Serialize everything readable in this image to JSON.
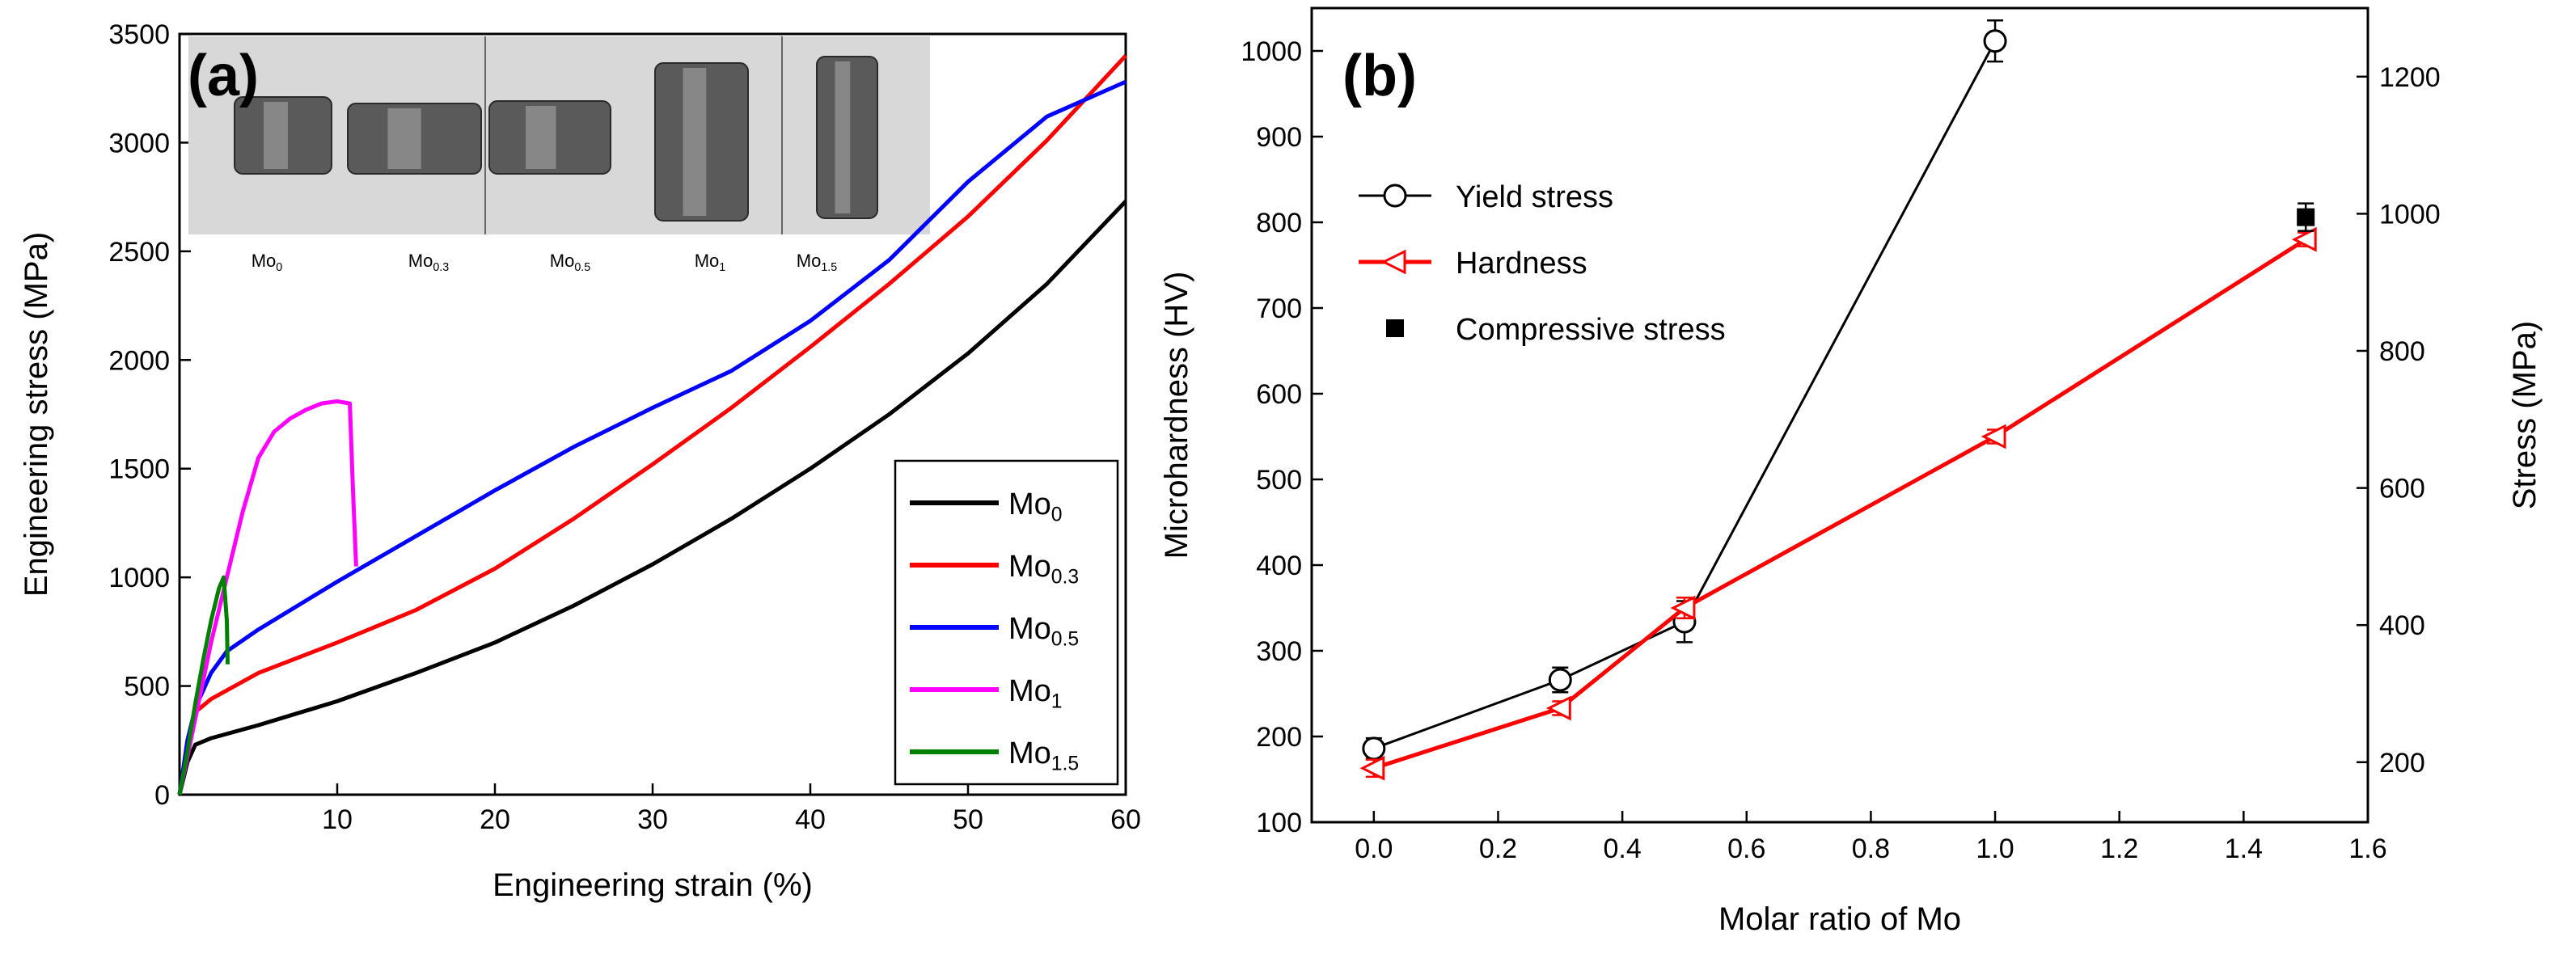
{
  "chart_data": [
    {
      "panel": "(a)",
      "type": "line",
      "title": "",
      "xlabel": "Engineering strain (%)",
      "ylabel": "Engineering stress (MPa)",
      "xlim": [
        0,
        60
      ],
      "ylim": [
        0,
        3500
      ],
      "xticks": [
        10,
        20,
        30,
        40,
        50,
        60
      ],
      "yticks": [
        0,
        500,
        1000,
        1500,
        2000,
        2500,
        3000,
        3500
      ],
      "legend_position": "bottom-right",
      "series": [
        {
          "name": "Mo0",
          "label_base": "Mo",
          "label_sub": "0",
          "color": "#000000",
          "x": [
            0,
            0.5,
            1,
            2,
            5,
            10,
            15,
            20,
            25,
            30,
            35,
            40,
            45,
            50,
            55,
            60
          ],
          "y": [
            0,
            150,
            230,
            260,
            320,
            430,
            560,
            700,
            870,
            1060,
            1270,
            1500,
            1750,
            2030,
            2350,
            2730
          ]
        },
        {
          "name": "Mo0.3",
          "label_base": "Mo",
          "label_sub": "0.3",
          "color": "#ff0000",
          "x": [
            0,
            0.5,
            1,
            2,
            5,
            10,
            15,
            20,
            25,
            30,
            35,
            40,
            45,
            50,
            55,
            60
          ],
          "y": [
            0,
            250,
            380,
            440,
            560,
            700,
            850,
            1040,
            1270,
            1520,
            1780,
            2060,
            2350,
            2660,
            3010,
            3400
          ]
        },
        {
          "name": "Mo0.5",
          "label_base": "Mo",
          "label_sub": "0.5",
          "color": "#0000ff",
          "x": [
            0,
            0.5,
            1,
            2,
            3,
            5,
            10,
            15,
            20,
            25,
            30,
            35,
            40,
            45,
            50,
            55,
            60
          ],
          "y": [
            0,
            250,
            400,
            560,
            660,
            760,
            980,
            1190,
            1400,
            1600,
            1780,
            1950,
            2180,
            2460,
            2820,
            3120,
            3280
          ]
        },
        {
          "name": "Mo1",
          "label_base": "Mo",
          "label_sub": "1",
          "color": "#ff00ff",
          "x": [
            0,
            1,
            2,
            3,
            4,
            5,
            6,
            7,
            8,
            9,
            10,
            10.8,
            11,
            11.2
          ],
          "y": [
            0,
            350,
            700,
            1000,
            1300,
            1550,
            1670,
            1730,
            1770,
            1800,
            1810,
            1800,
            1400,
            1050
          ]
        },
        {
          "name": "Mo1.5",
          "label_base": "Mo",
          "label_sub": "1.5",
          "color": "#008000",
          "x": [
            0,
            0.5,
            1,
            1.5,
            2,
            2.5,
            2.8,
            3.0,
            3.05
          ],
          "y": [
            0,
            200,
            420,
            620,
            800,
            950,
            1000,
            800,
            600
          ]
        }
      ],
      "inset_photo_labels": [
        {
          "base": "Mo",
          "sub": "0"
        },
        {
          "base": "Mo",
          "sub": "0.3"
        },
        {
          "base": "Mo",
          "sub": "0.5"
        },
        {
          "base": "Mo",
          "sub": "1"
        },
        {
          "base": "Mo",
          "sub": "1.5"
        }
      ]
    },
    {
      "panel": "(b)",
      "type": "line",
      "title": "",
      "xlabel": "Molar ratio of Mo",
      "ylabel_left": "Microhardness (HV)",
      "ylabel_right": "Stress (MPa)",
      "xlim": [
        -0.1,
        1.6
      ],
      "ylim_left": [
        100,
        1050
      ],
      "ylim_right": [
        112.5,
        1300
      ],
      "xticks": [
        "0.0",
        "0.2",
        "0.4",
        "0.6",
        "0.8",
        "1.0",
        "1.2",
        "1.4",
        "1.6"
      ],
      "yticks_left": [
        100,
        200,
        300,
        400,
        500,
        600,
        700,
        800,
        900,
        1000
      ],
      "yticks_right": [
        200,
        400,
        600,
        800,
        1000,
        1200
      ],
      "legend_position": "top-left",
      "series": [
        {
          "name": "Yield stress",
          "axis": "right",
          "color": "#000000",
          "marker": "open-circle",
          "x": [
            0.0,
            0.3,
            0.5,
            1.0
          ],
          "y": [
            220,
            320,
            405,
            1252
          ],
          "err": [
            15,
            18,
            30,
            30
          ]
        },
        {
          "name": "Hardness",
          "axis": "left",
          "color": "#ff0000",
          "marker": "open-triangle-left",
          "x": [
            0.0,
            0.3,
            0.5,
            1.0,
            1.5
          ],
          "y": [
            163,
            233,
            350,
            550,
            780
          ],
          "err": [
            10,
            8,
            12,
            8,
            8
          ]
        },
        {
          "name": "Compressive stress",
          "axis": "right",
          "color": "#000000",
          "marker": "filled-square",
          "x": [
            1.5
          ],
          "y": [
            995
          ],
          "err": [
            20
          ]
        }
      ]
    }
  ]
}
